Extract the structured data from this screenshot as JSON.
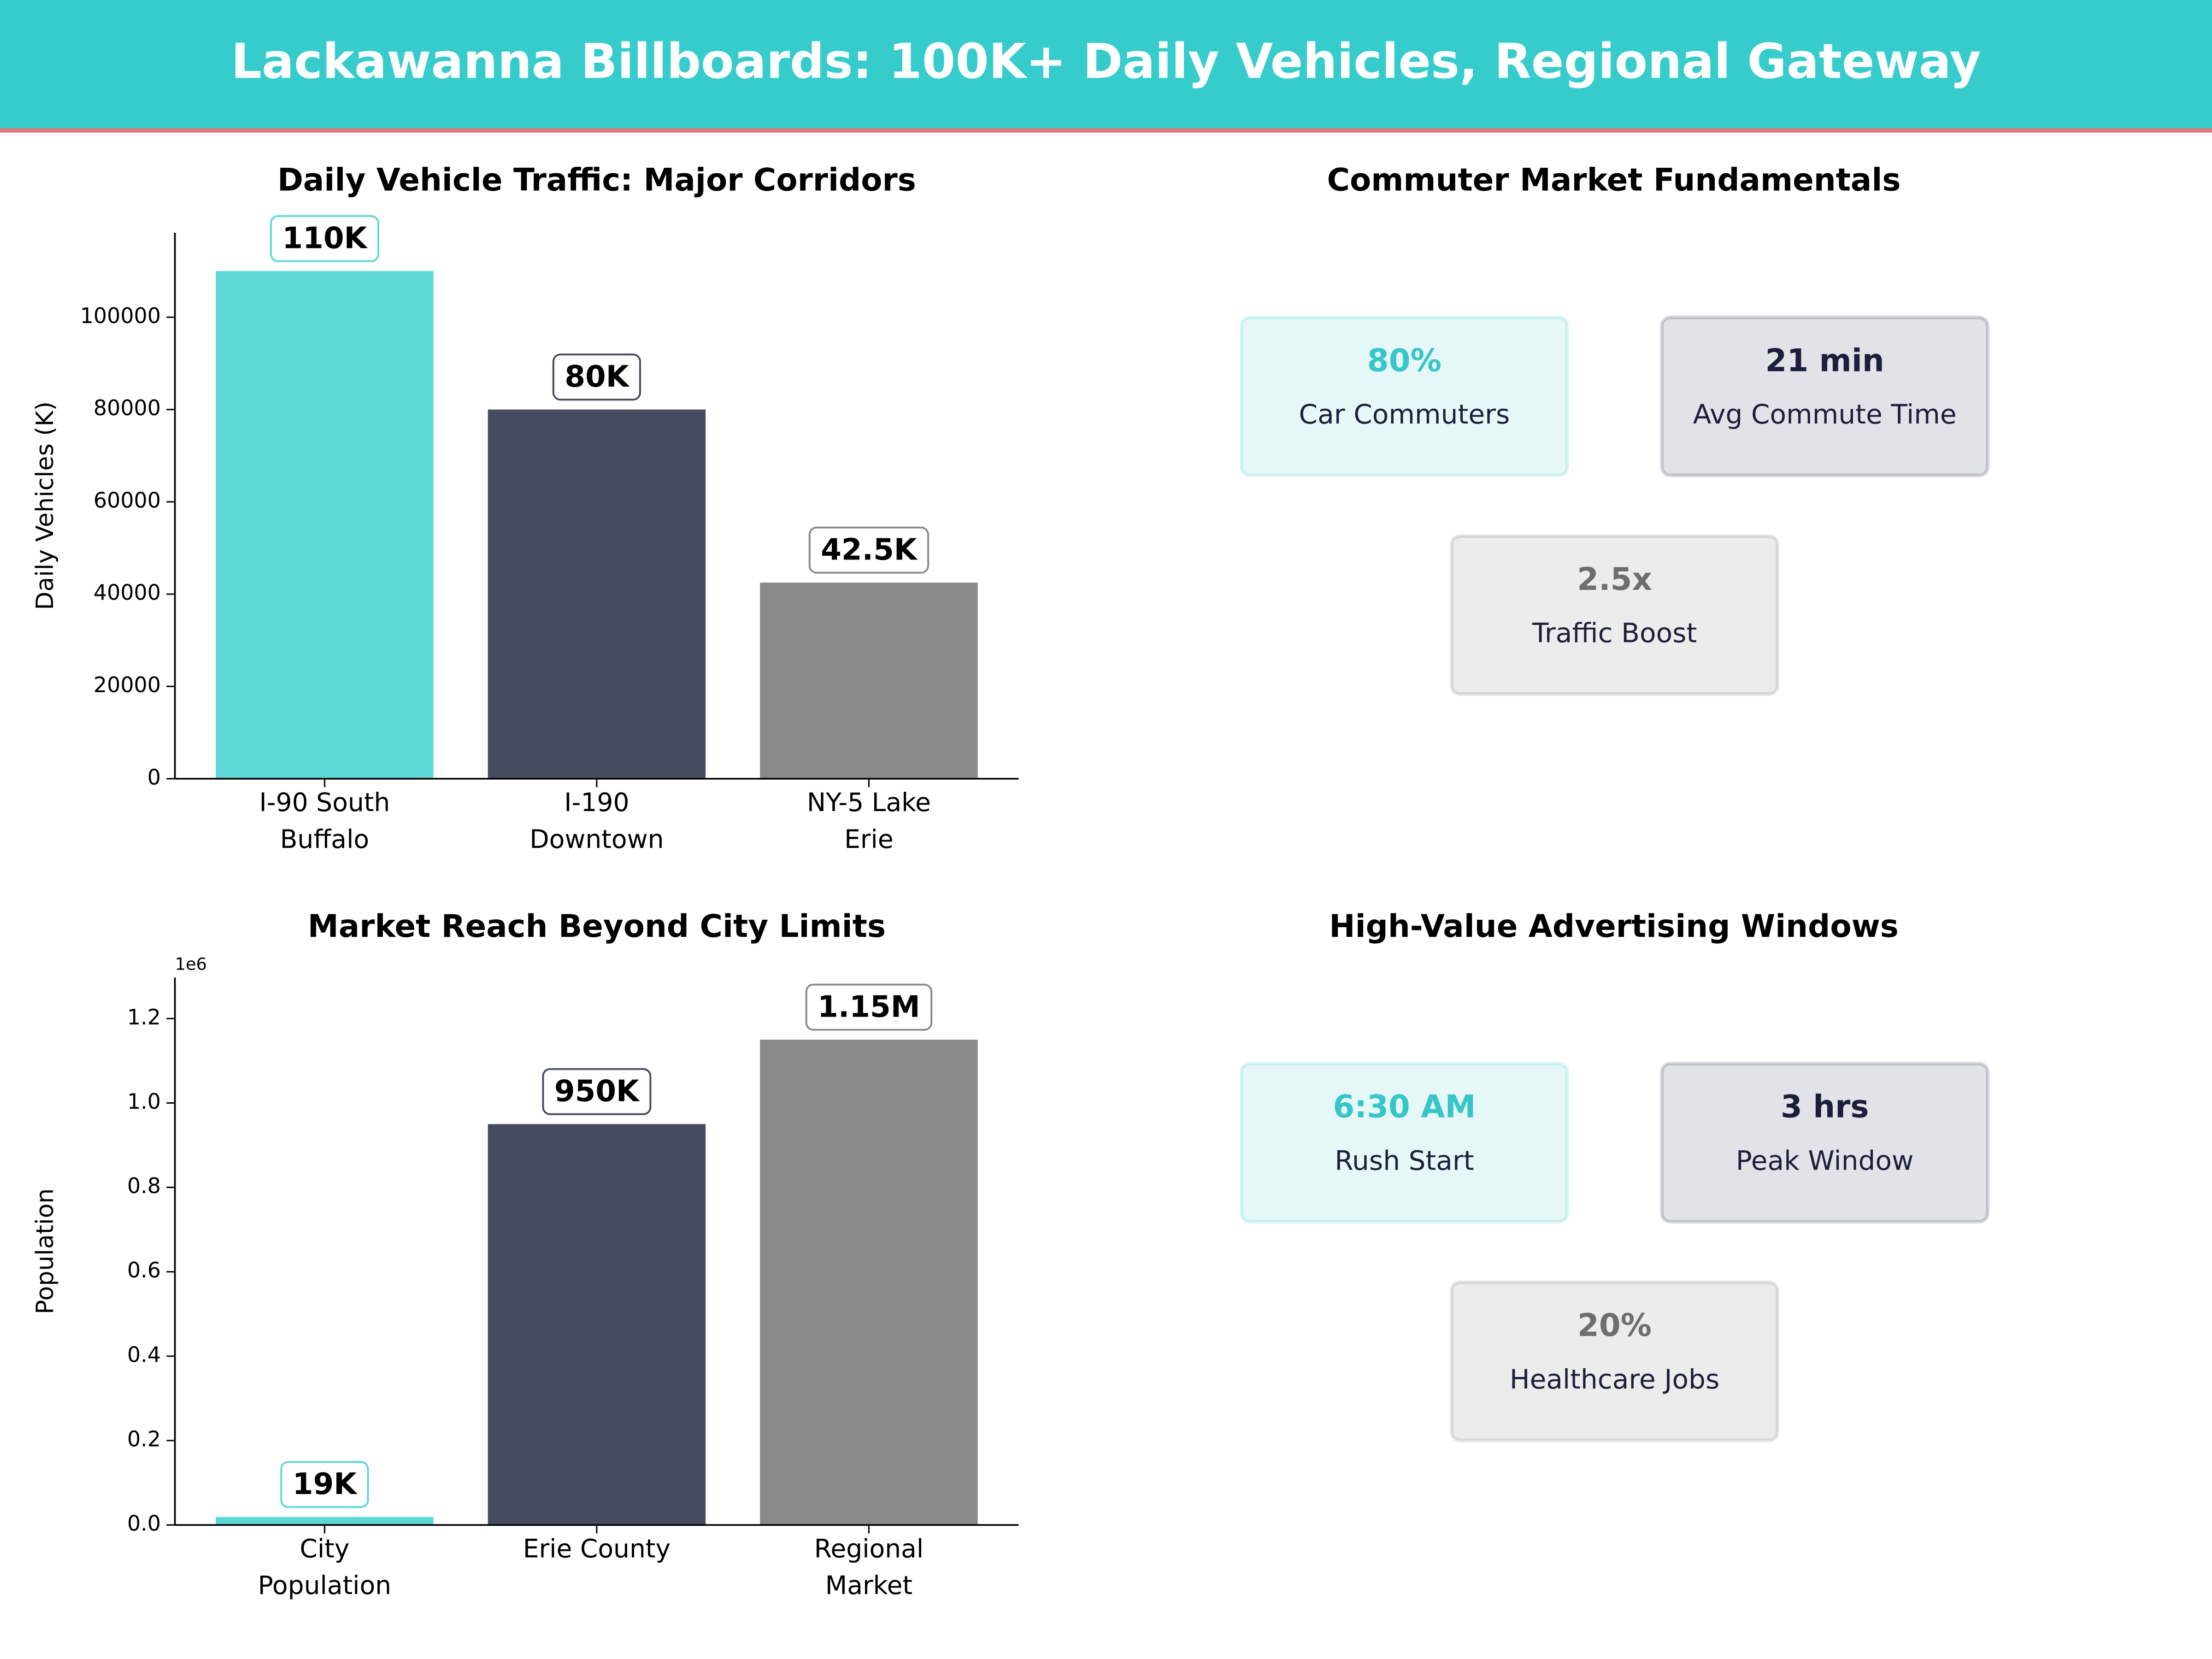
{
  "title": "Lackawanna Billboards: 100K+ Daily Vehicles, Regional Gateway",
  "chart_data": [
    {
      "type": "bar",
      "title": "Daily Vehicle Traffic: Major Corridors",
      "y_label": "Daily Vehicles (K)",
      "categories": [
        "I-90 South\nBuffalo",
        "I-190\nDowntown",
        "NY-5 Lake\nErie"
      ],
      "values": [
        110000,
        80000,
        42500
      ],
      "value_labels": [
        "110K",
        "80K",
        "42.5K"
      ],
      "colors": [
        "#5dd8d6",
        "#464b60",
        "#8a8a8a"
      ],
      "ylim": [
        0,
        118300
      ],
      "yticks": [
        0,
        20000,
        40000,
        60000,
        80000,
        100000
      ]
    },
    {
      "type": "bar",
      "title": "Market Reach Beyond City Limits",
      "y_label": "Population",
      "y_offset_label": "1e6",
      "categories": [
        "City\nPopulation",
        "Erie County",
        "Regional\nMarket"
      ],
      "values": [
        19000,
        950000,
        1150000
      ],
      "value_labels": [
        "19K",
        "950K",
        "1.15M"
      ],
      "colors": [
        "#5dd8d6",
        "#464b60",
        "#8a8a8a"
      ],
      "ylim": [
        0,
        1297000
      ],
      "yticks": [
        {
          "value": 0,
          "label": "0.0"
        },
        {
          "value": 200000,
          "label": "0.2"
        },
        {
          "value": 400000,
          "label": "0.4"
        },
        {
          "value": 600000,
          "label": "0.6"
        },
        {
          "value": 800000,
          "label": "0.8"
        },
        {
          "value": 1000000,
          "label": "1.0"
        },
        {
          "value": 1200000,
          "label": "1.2"
        }
      ]
    }
  ],
  "panels": [
    {
      "title": "Commuter Market Fundamentals",
      "cards": [
        {
          "value": "80%",
          "label": "Car Commuters",
          "color": "#36c5c8",
          "background": "#e5f7f7"
        },
        {
          "value": "21 min",
          "label": "Avg Commute Time",
          "color": "#1c1f3a",
          "background": "#e2e3e8"
        },
        {
          "value": "2.5x",
          "label": "Traffic Boost",
          "color": "#6e6e6e",
          "background": "#ececec"
        }
      ]
    },
    {
      "title": "High-Value Advertising Windows",
      "cards": [
        {
          "value": "6:30 AM",
          "label": "Rush Start",
          "color": "#36c5c8",
          "background": "#e5f7f7"
        },
        {
          "value": "3 hrs",
          "label": "Peak Window",
          "color": "#1c1f3a",
          "background": "#e2e3e8"
        },
        {
          "value": "20%",
          "label": "Healthcare Jobs",
          "color": "#6e6e6e",
          "background": "#ececec"
        }
      ]
    }
  ]
}
